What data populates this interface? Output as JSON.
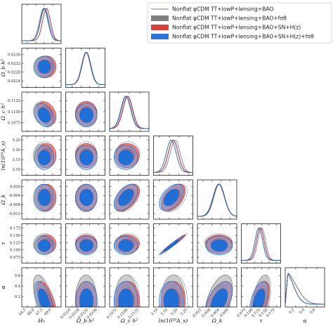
{
  "legend": [
    {
      "label": "Nonflat φCDM TT+lowP+lensing+BAO",
      "kind": "line",
      "color": "#8a8fbf"
    },
    {
      "label": "Nonflat φCDM TT+lowP+lensing+BAO+fσ8",
      "kind": "patch",
      "color": "#808080"
    },
    {
      "label": "Nonflat φCDM TT+lowP+lensing+BAO+SN+H(z)",
      "kind": "patch",
      "color": "#d9403a"
    },
    {
      "label": "Nonflat φCDM TT+lowP+lensing+BAO+SN+H(z)+fσ8",
      "kind": "patch",
      "color": "#2a73d9"
    }
  ],
  "chart_data": {
    "type": "corner",
    "parameters": [
      {
        "name": "H0",
        "label": "H₀",
        "ticks": [
          "64.5",
          "66.0",
          "67.5",
          "69.0"
        ],
        "range": [
          63.5,
          70.5
        ]
      },
      {
        "name": "Omega_b h^2",
        "label": "Ω_b h²",
        "ticks": [
          "0.0224",
          "0.0228",
          "0.0232",
          "0.0236"
        ],
        "range": [
          0.0221,
          0.0239
        ]
      },
      {
        "name": "Omega_c h^2",
        "label": "Ω_c h²",
        "ticks": [
          "0.1075",
          "0.1100",
          "0.1125"
        ],
        "range": [
          0.1055,
          0.1145
        ]
      },
      {
        "name": "ln(10^10 A_s)",
        "label": "ln(10¹⁰A_s)",
        "ticks": [
          "3.10",
          "3.15",
          "3.20",
          "3.25"
        ],
        "range": [
          3.07,
          3.27
        ]
      },
      {
        "name": "Omega_k",
        "label": "Ω_k",
        "ticks": [
          "-0.012",
          "-0.008",
          "-0.004",
          "0.000"
        ],
        "range": [
          -0.0145,
          0.003
        ]
      },
      {
        "name": "tau",
        "label": "τ",
        "ticks": [
          "0.075",
          "0.100",
          "0.125",
          "0.150",
          "0.175"
        ],
        "range": [
          0.055,
          0.19
        ]
      },
      {
        "name": "alpha",
        "label": "α",
        "ticks": [
          "0.2",
          "0.4",
          "0.6"
        ],
        "range": [
          0.0,
          0.75
        ]
      }
    ],
    "series": [
      {
        "name": "Nonflat φCDM TT+lowP+lensing+BAO",
        "mean": [
          67.6,
          0.02303,
          0.1097,
          3.18,
          -0.0051,
          0.125,
          0.15
        ],
        "sigma": [
          0.75,
          0.0002,
          0.0011,
          0.025,
          0.0025,
          0.013,
          0.2
        ]
      },
      {
        "name": "Nonflat φCDM TT+lowP+lensing+BAO+fσ8",
        "mean": [
          67.4,
          0.02303,
          0.1093,
          3.17,
          -0.005,
          0.12,
          0.15
        ],
        "sigma": [
          0.75,
          0.0002,
          0.0011,
          0.025,
          0.0025,
          0.013,
          0.2
        ]
      },
      {
        "name": "Nonflat φCDM TT+lowP+lensing+BAO+SN+H(z)",
        "mean": [
          67.9,
          0.02305,
          0.1096,
          3.17,
          -0.0048,
          0.12,
          0.12
        ],
        "sigma": [
          0.7,
          0.0002,
          0.0011,
          0.025,
          0.0024,
          0.013,
          0.15
        ]
      },
      {
        "name": "Nonflat φCDM TT+lowP+lensing+BAO+SN+H(z)+fσ8",
        "mean": [
          67.5,
          0.02305,
          0.1092,
          3.16,
          -0.0048,
          0.115,
          0.12
        ],
        "sigma": [
          0.7,
          0.0002,
          0.0011,
          0.025,
          0.0024,
          0.013,
          0.15
        ]
      }
    ],
    "correlations": [
      {
        "pair": [
          "H0",
          "Omega_c h^2"
        ],
        "rho": -0.3
      },
      {
        "pair": [
          "Omega_c h^2",
          "Omega_k"
        ],
        "rho": 0.5
      },
      {
        "pair": [
          "ln(10^10 A_s)",
          "Omega_k"
        ],
        "rho": 0.5
      },
      {
        "pair": [
          "ln(10^10 A_s)",
          "tau"
        ],
        "rho": 0.98
      },
      {
        "pair": [
          "H0",
          "alpha"
        ],
        "rho": -0.6
      },
      {
        "pair": [
          "Omega_k",
          "alpha"
        ],
        "rho": 0.5
      },
      {
        "pair": [
          "tau",
          "alpha"
        ],
        "rho": 0.5
      }
    ],
    "grid": false,
    "legend_position": "top-right"
  }
}
